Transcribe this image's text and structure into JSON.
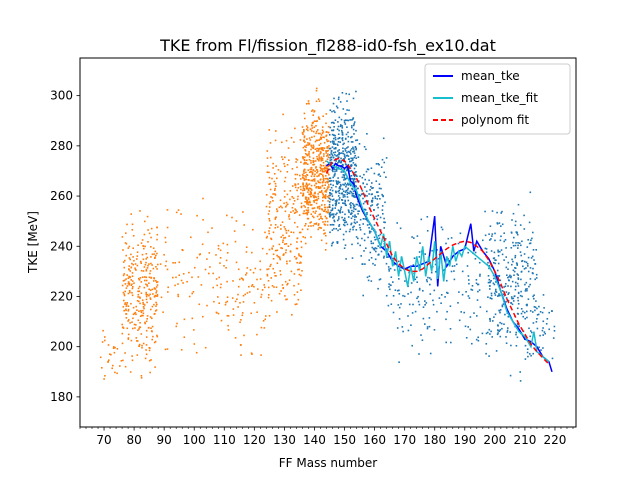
{
  "chart_data": {
    "type": "scatter",
    "title": "TKE from  Fl/fission_fl288-id0-fsh_ex10.dat",
    "xlabel": "FF Mass number",
    "ylabel": "TKE [MeV]",
    "xlim": [
      62,
      227
    ],
    "ylim": [
      168,
      315
    ],
    "x_major_ticks": [
      70,
      80,
      90,
      100,
      110,
      120,
      130,
      140,
      150,
      160,
      170,
      180,
      190,
      200,
      210,
      220
    ],
    "x_minor_step": 2,
    "y_ticks": [
      180,
      200,
      220,
      240,
      260,
      280,
      300
    ],
    "legend_position": "top-right",
    "colors": {
      "light_fragments": "#ff7f0e",
      "heavy_fragments": "#1f77b4",
      "mean_tke": "#0000ff",
      "mean_tke_fit": "#17becf",
      "polynom_fit": "#ff0000"
    },
    "scatter_regions": {
      "light": [
        {
          "x": [
            68,
            76
          ],
          "y": [
            178,
            212
          ],
          "count": 25
        },
        {
          "x": [
            76,
            88
          ],
          "y": [
            182,
            262
          ],
          "count": 320
        },
        {
          "x": [
            88,
            106
          ],
          "y": [
            188,
            268
          ],
          "count": 70
        },
        {
          "x": [
            106,
            124
          ],
          "y": [
            186,
            262
          ],
          "count": 110
        },
        {
          "x": [
            124,
            136
          ],
          "y": [
            192,
            300
          ],
          "count": 260
        },
        {
          "x": [
            136,
            145
          ],
          "y": [
            230,
            308
          ],
          "count": 520
        }
      ],
      "heavy": [
        {
          "x": [
            145,
            154
          ],
          "y": [
            230,
            309
          ],
          "count": 520
        },
        {
          "x": [
            154,
            164
          ],
          "y": [
            212,
            290
          ],
          "count": 200
        },
        {
          "x": [
            164,
            198
          ],
          "y": [
            186,
            262
          ],
          "count": 210
        },
        {
          "x": [
            198,
            214
          ],
          "y": [
            180,
            270
          ],
          "count": 320
        },
        {
          "x": [
            214,
            220
          ],
          "y": [
            190,
            224
          ],
          "count": 30
        }
      ]
    },
    "series": [
      {
        "name": "mean_tke",
        "style": "solid",
        "x": [
          144,
          145,
          146,
          147,
          148,
          149,
          150,
          151,
          152,
          153,
          154,
          155,
          156,
          158,
          160,
          162,
          164,
          166,
          168,
          170,
          172,
          174,
          176,
          178,
          179,
          180,
          181,
          182,
          184,
          186,
          188,
          190,
          191,
          192,
          193,
          194,
          196,
          198,
          200,
          202,
          204,
          206,
          208,
          210,
          212,
          214,
          216,
          218,
          219
        ],
        "y": [
          272,
          273,
          271,
          273,
          272,
          272,
          271,
          272,
          266,
          265,
          260,
          257,
          254,
          250,
          246,
          240,
          238,
          234,
          232,
          231,
          232,
          232,
          233,
          234,
          243,
          252,
          224,
          240,
          232,
          236,
          238,
          239,
          244,
          249,
          238,
          242,
          238,
          235,
          230,
          222,
          215,
          210,
          207,
          203,
          202,
          200,
          196,
          194,
          190
        ]
      },
      {
        "name": "mean_tke_fit",
        "style": "solid",
        "x": [
          144,
          146,
          148,
          150,
          152,
          154,
          156,
          158,
          160,
          162,
          163,
          164,
          165,
          166,
          167,
          168,
          169,
          170,
          171,
          172,
          173,
          174,
          175,
          176,
          177,
          178,
          179,
          180,
          181,
          182,
          183,
          184,
          185,
          186,
          187,
          188,
          189,
          190,
          192,
          194,
          196,
          198,
          200,
          202,
          204,
          206,
          208,
          210,
          212,
          213,
          214,
          216,
          218
        ],
        "y": [
          274,
          272,
          271,
          270,
          265,
          262,
          255,
          250,
          246,
          240,
          245,
          236,
          242,
          232,
          238,
          228,
          236,
          230,
          224,
          232,
          226,
          236,
          230,
          240,
          228,
          236,
          230,
          242,
          227,
          238,
          226,
          236,
          232,
          240,
          234,
          238,
          236,
          240,
          238,
          236,
          234,
          232,
          228,
          222,
          214,
          210,
          206,
          204,
          200,
          206,
          198,
          196,
          194
        ]
      },
      {
        "name": "polynom fit",
        "style": "dashed",
        "x": [
          144,
          146,
          148,
          150,
          152,
          154,
          156,
          158,
          160,
          162,
          164,
          166,
          168,
          170,
          172,
          174,
          176,
          178,
          180,
          182,
          184,
          186,
          188,
          190,
          192,
          194,
          196,
          198,
          200,
          202,
          204,
          206,
          208,
          210,
          212,
          214,
          216,
          218
        ],
        "y": [
          269,
          274,
          275,
          274,
          271,
          267,
          262,
          256,
          251,
          246,
          241,
          236,
          233,
          231,
          230,
          230,
          231,
          233,
          235,
          237,
          239,
          240.5,
          241.5,
          242,
          241.5,
          240,
          238,
          234.5,
          230,
          225,
          219,
          214,
          209,
          205,
          201,
          198,
          195.5,
          193
        ]
      }
    ]
  }
}
